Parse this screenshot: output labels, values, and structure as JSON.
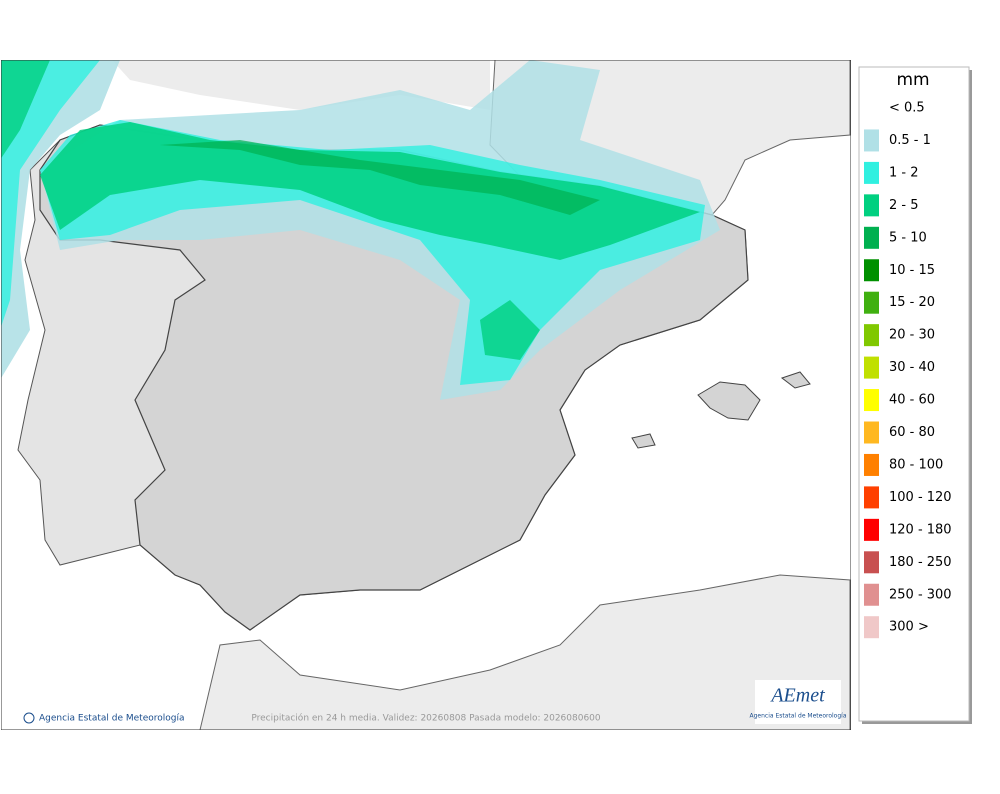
{
  "map": {
    "footer_left": "Agencia Estatal de Meteorología",
    "footer_center": "Precipitación en 24 h media. Validez: 20260808 Pasada modelo: 2026080600",
    "logo": {
      "name": "AEmet",
      "subtitle": "Agencia Estatal de Meteorología"
    }
  },
  "legend": {
    "title": "mm",
    "items": [
      {
        "label": "< 0.5"
      },
      {
        "label": "0.5 - 1",
        "color": "#b0e0e6"
      },
      {
        "label": "1 - 2",
        "color": "#30f0e0"
      },
      {
        "label": "2 - 5",
        "color": "#00d080"
      },
      {
        "label": "5 - 10",
        "color": "#00b050"
      },
      {
        "label": "10 - 15",
        "color": "#009000"
      },
      {
        "label": "15 - 20",
        "color": "#40b010"
      },
      {
        "label": "20 - 30",
        "color": "#80c800"
      },
      {
        "label": "30 - 40",
        "color": "#c0e000"
      },
      {
        "label": "40 - 60",
        "color": "#ffff00"
      },
      {
        "label": "60 - 80",
        "color": "#ffb820"
      },
      {
        "label": "80 - 100",
        "color": "#ff8000"
      },
      {
        "label": "100 - 120",
        "color": "#ff4000"
      },
      {
        "label": "120 - 180",
        "color": "#ff0000"
      },
      {
        "label": "180 - 250",
        "color": "#c85050"
      },
      {
        "label": "250 - 300",
        "color": "#e09090"
      },
      {
        "label": "300 >",
        "color": "#f0c8c8"
      }
    ]
  }
}
